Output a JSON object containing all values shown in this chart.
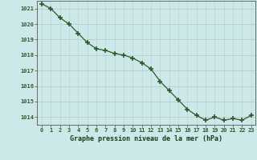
{
  "x": [
    0,
    1,
    2,
    3,
    4,
    5,
    6,
    7,
    8,
    9,
    10,
    11,
    12,
    13,
    14,
    15,
    16,
    17,
    18,
    19,
    20,
    21,
    22,
    23
  ],
  "y": [
    1021.3,
    1021.0,
    1020.4,
    1020.0,
    1019.4,
    1018.8,
    1018.4,
    1018.3,
    1018.1,
    1018.0,
    1017.8,
    1017.5,
    1017.1,
    1016.3,
    1015.7,
    1015.1,
    1014.5,
    1014.1,
    1013.8,
    1014.0,
    1013.8,
    1013.9,
    1013.8,
    1014.1
  ],
  "ylim": [
    1013.5,
    1021.5
  ],
  "yticks": [
    1014,
    1015,
    1016,
    1017,
    1018,
    1019,
    1020,
    1021
  ],
  "xlabel": "Graphe pression niveau de la mer (hPa)",
  "bg_color": "#cce8e8",
  "line_color": "#2d5a2d",
  "marker_color": "#2d5a2d",
  "grid_color_major": "#b0c8c8",
  "grid_color_minor": "#ddeaea",
  "tick_color": "#2d5a2d",
  "label_color": "#1a3a1a",
  "axis_color": "#2d5a2d",
  "spine_color": "#555555"
}
